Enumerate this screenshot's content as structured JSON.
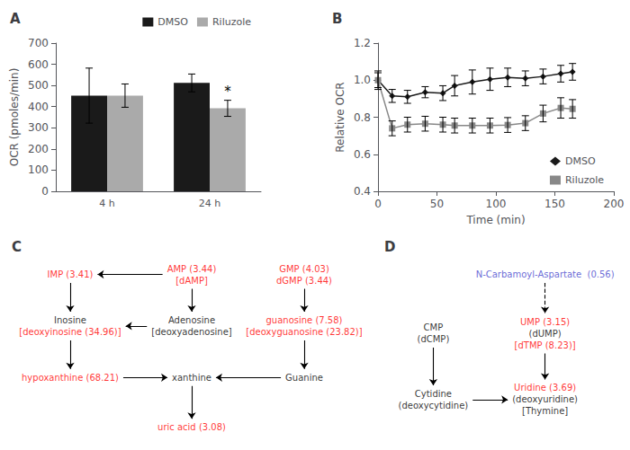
{
  "chart_data": [
    {
      "type": "bar",
      "title": "A",
      "categories": [
        "4 h",
        "24 h"
      ],
      "series": [
        {
          "name": "DMSO",
          "color": "#1a1a1a",
          "values": [
            452,
            512
          ],
          "errors": [
            130,
            42
          ]
        },
        {
          "name": "Riluzole",
          "color": "#aaaaaa",
          "values": [
            452,
            392
          ],
          "errors": [
            55,
            38
          ]
        }
      ],
      "ylabel": "OCR (pmoles/min)",
      "ylim": [
        0,
        700
      ],
      "yticks": [
        0,
        100,
        200,
        300,
        400,
        500,
        600,
        700
      ],
      "grid": false,
      "legend": "upper right",
      "annotations": [
        {
          "text": "*",
          "category": "24 h",
          "series": "Riluzole"
        }
      ]
    },
    {
      "type": "line",
      "title": "B",
      "xlabel": "Time (min)",
      "ylabel": "Relative OCR",
      "xlim": [
        0,
        200
      ],
      "xticks": [
        0,
        50,
        100,
        150,
        200
      ],
      "ylim": [
        0.4,
        1.2
      ],
      "yticks": [
        0.4,
        0.6,
        0.8,
        {
          "value": 1.0,
          "label": "1.0"
        },
        1.2
      ],
      "series": [
        {
          "name": "DMSO",
          "color": "#1a1a1a",
          "marker": "diamond",
          "x": [
            0,
            12,
            25,
            40,
            55,
            65,
            80,
            95,
            110,
            125,
            140,
            155,
            165
          ],
          "values": [
            1.0,
            0.915,
            0.91,
            0.935,
            0.93,
            0.97,
            0.99,
            1.005,
            1.015,
            1.01,
            1.02,
            1.035,
            1.045
          ],
          "errors": [
            0.05,
            0.035,
            0.035,
            0.03,
            0.04,
            0.055,
            0.065,
            0.06,
            0.05,
            0.04,
            0.04,
            0.045,
            0.045
          ]
        },
        {
          "name": "Riluzole",
          "color": "#888888",
          "marker": "square",
          "x": [
            0,
            12,
            25,
            40,
            55,
            65,
            80,
            95,
            110,
            125,
            140,
            155,
            165
          ],
          "values": [
            1.0,
            0.74,
            0.76,
            0.765,
            0.76,
            0.755,
            0.755,
            0.755,
            0.758,
            0.768,
            0.82,
            0.85,
            0.845
          ],
          "errors": [
            0.04,
            0.04,
            0.04,
            0.04,
            0.04,
            0.04,
            0.04,
            0.04,
            0.04,
            0.04,
            0.045,
            0.055,
            0.05
          ]
        }
      ],
      "grid": false,
      "legend": "lower right"
    },
    {
      "type": "diagram",
      "title": "C",
      "nodes": [
        {
          "lines": [
            "IMP (3.41)"
          ],
          "colors": [
            "red"
          ]
        },
        {
          "lines": [
            "AMP (3.44)",
            "[dAMP]"
          ],
          "colors": [
            "red",
            "red"
          ]
        },
        {
          "lines": [
            "GMP (4.03)",
            "dGMP (3.44)"
          ],
          "colors": [
            "red",
            "red"
          ]
        },
        {
          "lines": [
            "Inosine",
            "[deoxyinosine (34.96)]"
          ],
          "colors": [
            "black",
            "red"
          ]
        },
        {
          "lines": [
            "Adenosine",
            "[deoxyadenosine]"
          ],
          "colors": [
            "black",
            "black"
          ]
        },
        {
          "lines": [
            "guanosine (7.58)",
            "[deoxyguanosine (23.82)]"
          ],
          "colors": [
            "red",
            "red"
          ]
        },
        {
          "lines": [
            "hypoxanthine (68.21)"
          ],
          "colors": [
            "red"
          ]
        },
        {
          "lines": [
            "xanthine"
          ],
          "colors": [
            "black"
          ]
        },
        {
          "lines": [
            "Guanine"
          ],
          "colors": [
            "black"
          ]
        },
        {
          "lines": [
            "uric acid (3.08)"
          ],
          "colors": [
            "red"
          ]
        }
      ],
      "edges": [
        {
          "from": 1,
          "to": 0
        },
        {
          "from": 1,
          "to": 4
        },
        {
          "from": 2,
          "to": 5
        },
        {
          "from": 0,
          "to": 3
        },
        {
          "from": 4,
          "to": 3
        },
        {
          "from": 3,
          "to": 6
        },
        {
          "from": 5,
          "to": 8
        },
        {
          "from": 6,
          "to": 7
        },
        {
          "from": 8,
          "to": 7
        },
        {
          "from": 7,
          "to": 9
        }
      ]
    },
    {
      "type": "diagram",
      "title": "D",
      "nodes": [
        {
          "lines": [
            "N-Carbamoyl-Aspartate  (0.56)"
          ],
          "colors": [
            "#4444cc"
          ]
        },
        {
          "lines": [
            "CMP",
            "(dCMP)"
          ],
          "colors": [
            "black",
            "black"
          ]
        },
        {
          "lines": [
            "UMP (3.15)",
            "(dUMP)",
            "[dTMP (8.23)]"
          ],
          "colors": [
            "red",
            "black",
            "red"
          ]
        },
        {
          "lines": [
            "Cytidine",
            "(deoxycytidine)"
          ],
          "colors": [
            "black",
            "black"
          ]
        },
        {
          "lines": [
            "Uridine (3.69)",
            "(deoxyuridine)",
            "[Thymine]"
          ],
          "colors": [
            "red",
            "black",
            "black"
          ]
        }
      ],
      "edges": [
        {
          "from": 0,
          "to": 2,
          "line_style": "dashed"
        },
        {
          "from": 1,
          "to": 3
        },
        {
          "from": 2,
          "to": 4
        },
        {
          "from": 3,
          "to": 4
        }
      ]
    }
  ]
}
